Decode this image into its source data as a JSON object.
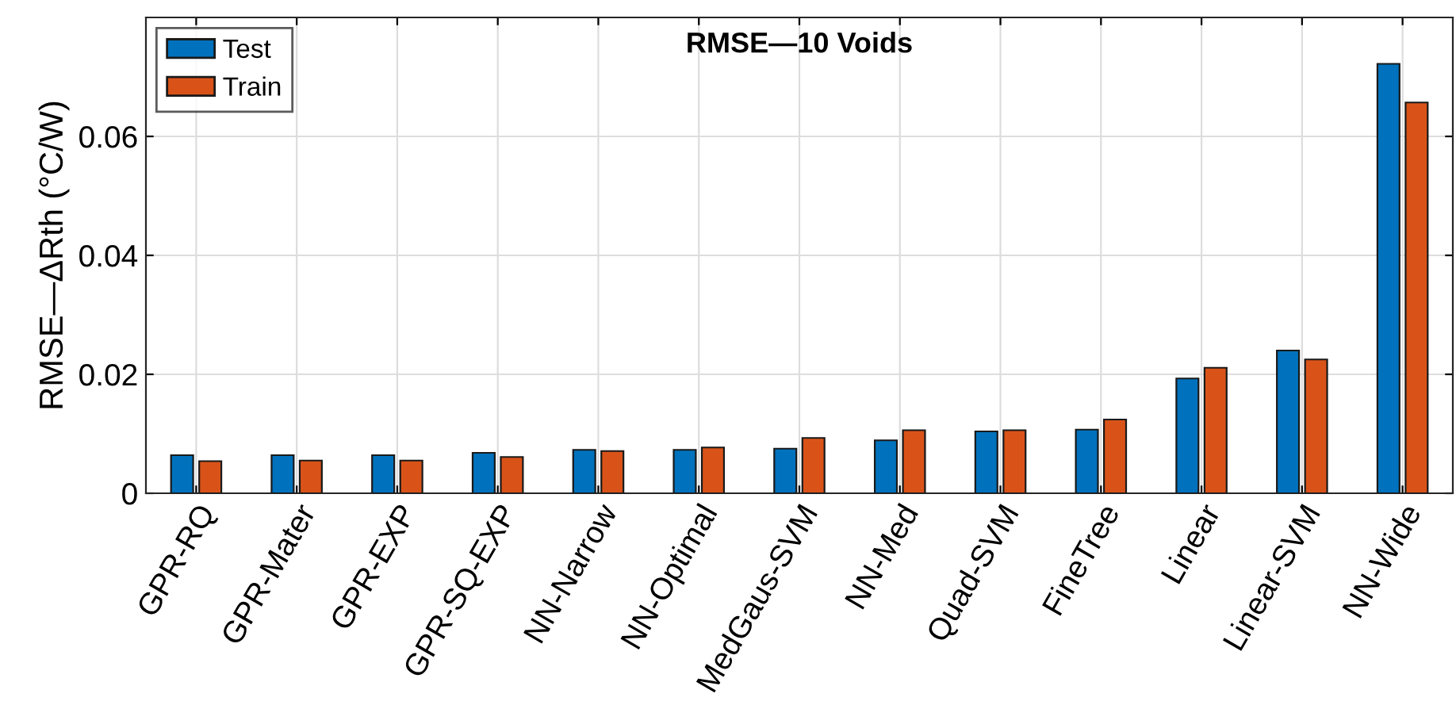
{
  "chart_data": {
    "type": "bar",
    "title": "RMSE—10 Voids",
    "ylabel": "RMSE—ΔRth (°C/W)",
    "categories": [
      "GPR-RQ",
      "GPR-Mater",
      "GPR-EXP",
      "GPR-SQ-EXP",
      "NN-Narrow",
      "NN-Optimal",
      "MedGaus-SVM",
      "NN-Med",
      "Quad-SVM",
      "FineTree",
      "Linear",
      "Linear-SVM",
      "NN-Wide"
    ],
    "series": [
      {
        "name": "Test",
        "color": "#0072bd",
        "values": [
          0.0064,
          0.0064,
          0.0064,
          0.0068,
          0.0073,
          0.0073,
          0.0075,
          0.0089,
          0.0104,
          0.0107,
          0.0193,
          0.024,
          0.0722
        ]
      },
      {
        "name": "Train",
        "color": "#d95319",
        "values": [
          0.0054,
          0.0055,
          0.0055,
          0.0061,
          0.0071,
          0.0077,
          0.0093,
          0.0106,
          0.0106,
          0.0124,
          0.0211,
          0.0225,
          0.0657
        ]
      }
    ],
    "ylim": [
      0,
      0.08
    ],
    "yticks": [
      0,
      0.02,
      0.04,
      0.06
    ],
    "grid": true,
    "legend": "top left"
  }
}
